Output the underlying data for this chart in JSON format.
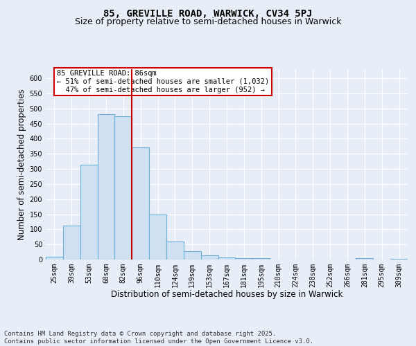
{
  "title_line1": "85, GREVILLE ROAD, WARWICK, CV34 5PJ",
  "title_line2": "Size of property relative to semi-detached houses in Warwick",
  "xlabel": "Distribution of semi-detached houses by size in Warwick",
  "ylabel": "Number of semi-detached properties",
  "categories": [
    "25sqm",
    "39sqm",
    "53sqm",
    "68sqm",
    "82sqm",
    "96sqm",
    "110sqm",
    "124sqm",
    "139sqm",
    "153sqm",
    "167sqm",
    "181sqm",
    "195sqm",
    "210sqm",
    "224sqm",
    "238sqm",
    "252sqm",
    "266sqm",
    "281sqm",
    "295sqm",
    "309sqm"
  ],
  "values": [
    10,
    113,
    315,
    480,
    475,
    370,
    150,
    60,
    28,
    14,
    8,
    5,
    5,
    0,
    0,
    0,
    0,
    0,
    5,
    0,
    3
  ],
  "bar_color": "#cfe0f3",
  "bar_edge_color": "#6baed6",
  "vline_x": 4.5,
  "vline_color": "#cc0000",
  "annotation_text": "85 GREVILLE ROAD: 86sqm\n← 51% of semi-detached houses are smaller (1,032)\n  47% of semi-detached houses are larger (952) →",
  "annotation_box_color": "#cc0000",
  "ylim": [
    0,
    630
  ],
  "yticks": [
    0,
    50,
    100,
    150,
    200,
    250,
    300,
    350,
    400,
    450,
    500,
    550,
    600
  ],
  "footer_text": "Contains HM Land Registry data © Crown copyright and database right 2025.\nContains public sector information licensed under the Open Government Licence v3.0.",
  "bg_color": "#e8eef8",
  "plot_bg_color": "#e8eef8",
  "grid_color": "#ffffff",
  "title_fontsize": 10,
  "subtitle_fontsize": 9,
  "axis_label_fontsize": 8.5,
  "tick_fontsize": 7,
  "footer_fontsize": 6.5,
  "ann_fontsize": 7.5
}
